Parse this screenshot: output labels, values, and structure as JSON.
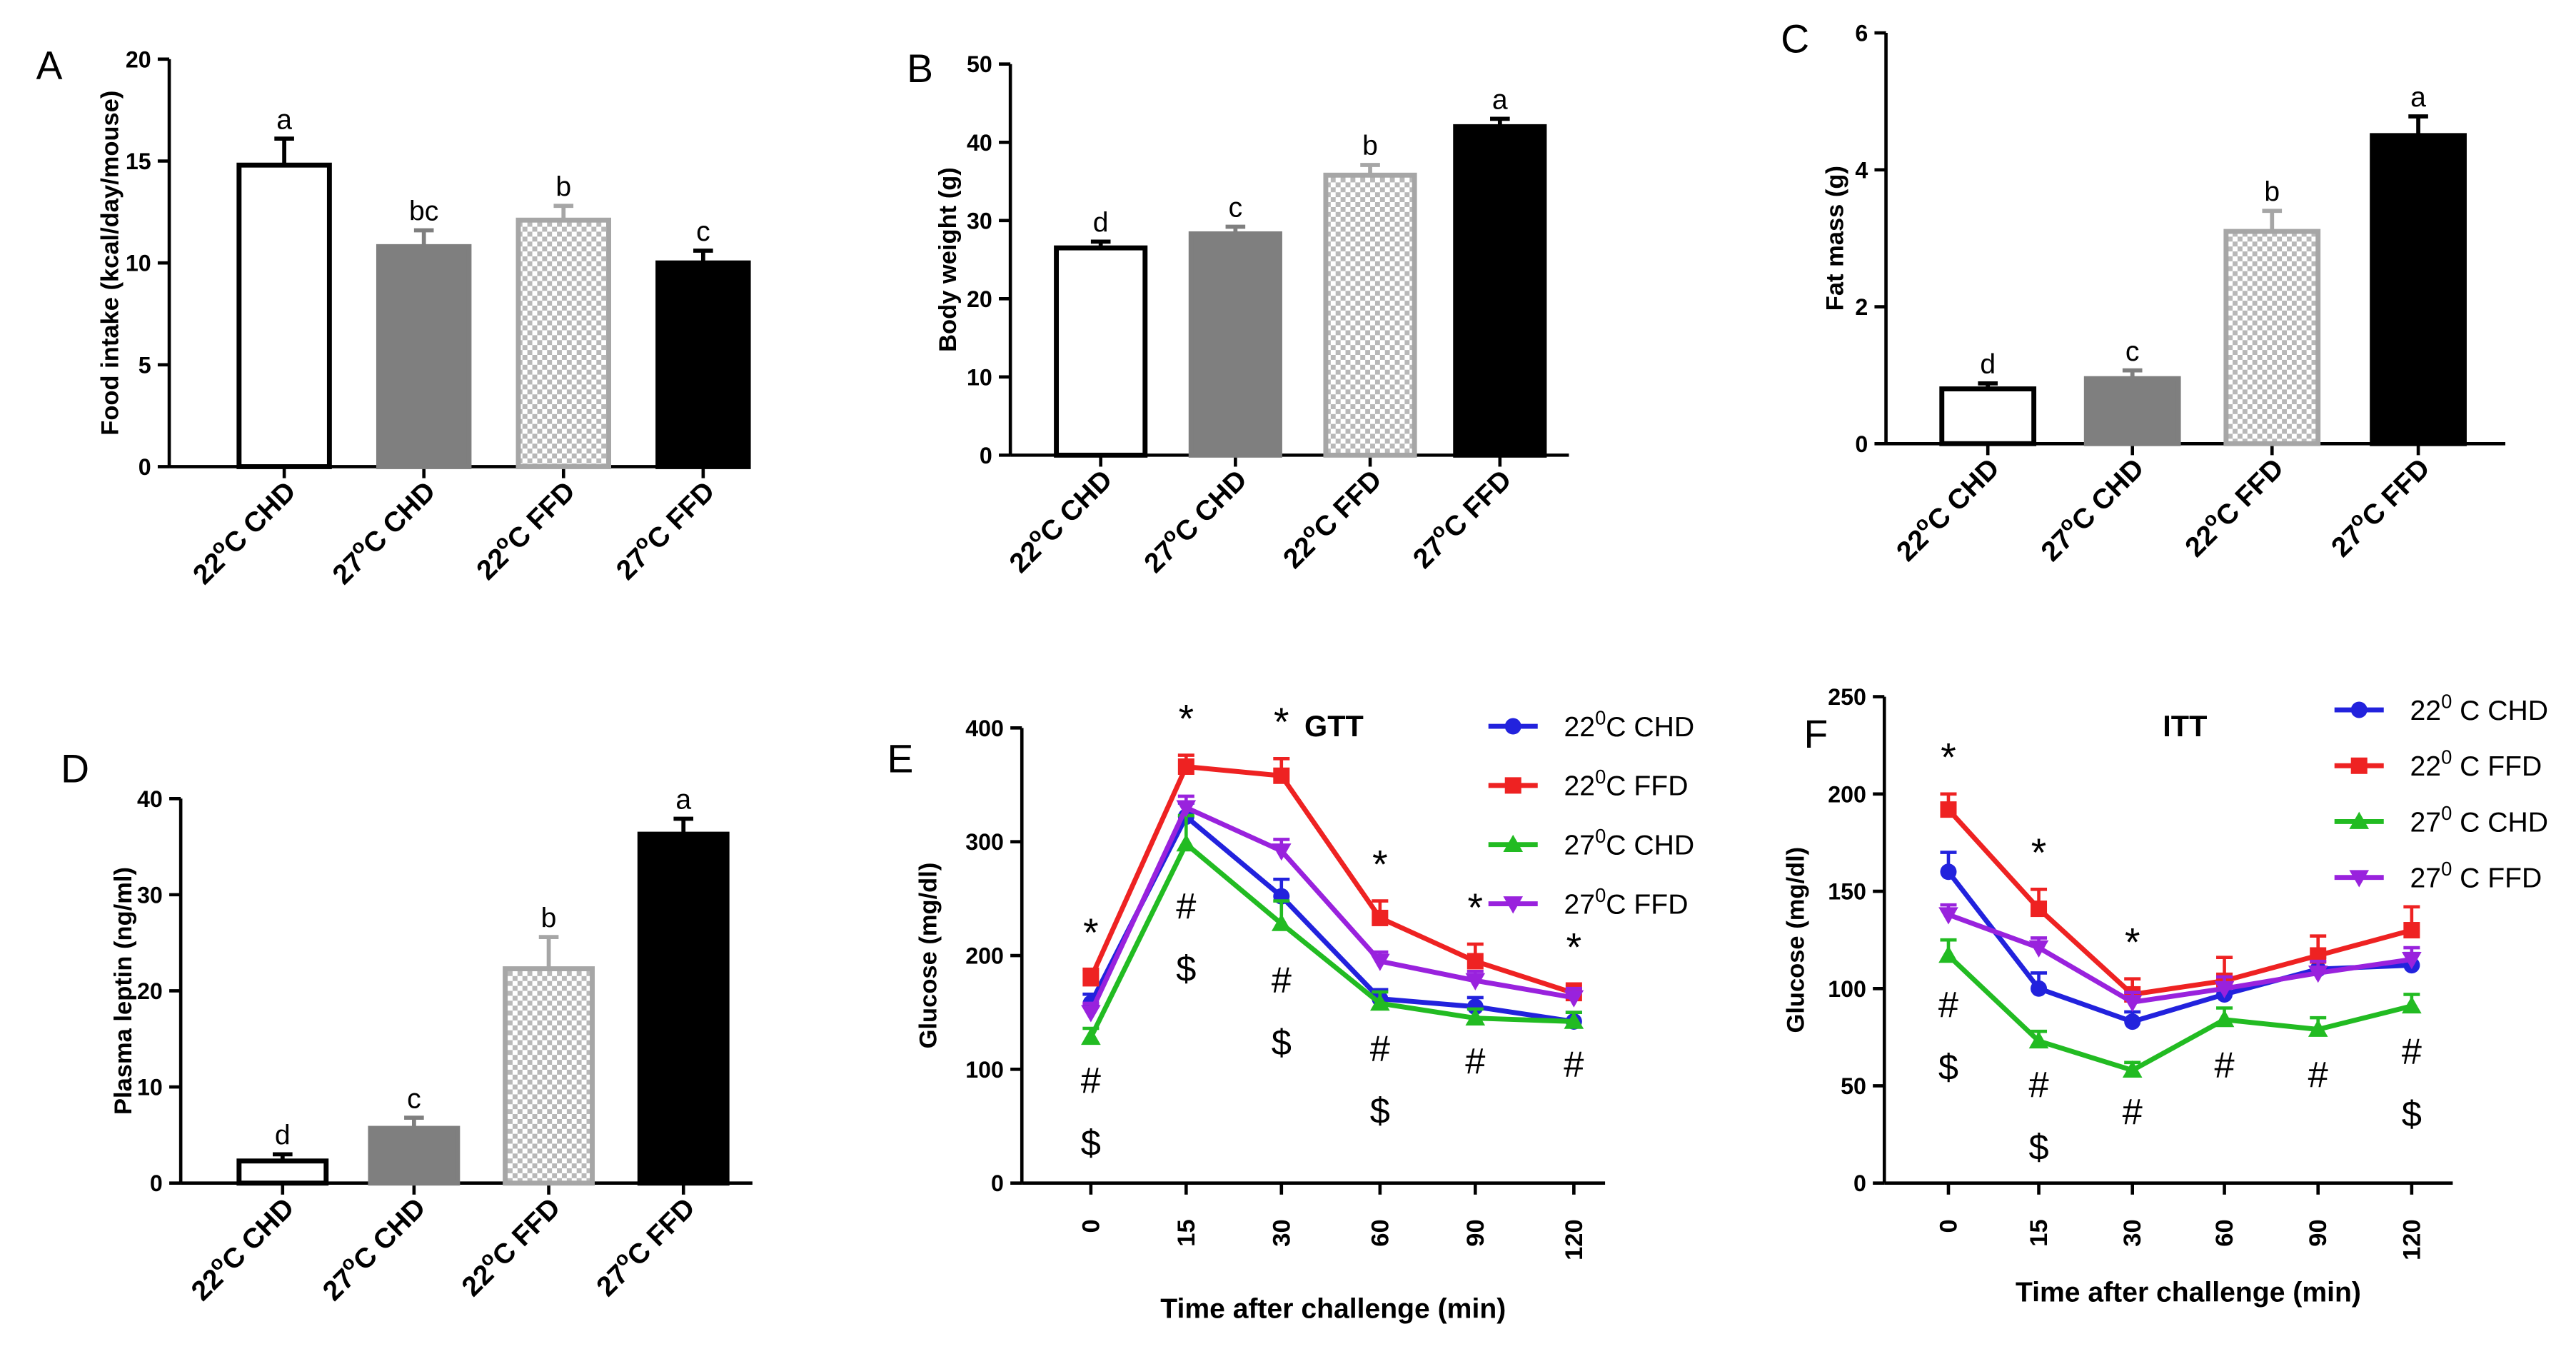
{
  "chart_data": [
    {
      "id": "A",
      "panel_label": "A",
      "type": "bar",
      "ylabel": "Food intake (kcal/day/mouse)",
      "ylim": [
        0,
        20
      ],
      "yticks": [
        "0",
        "5",
        "10",
        "15",
        "20"
      ],
      "categories": [
        {
          "main": "22",
          "sup": "o",
          "rest": "C CHD"
        },
        {
          "main": "27",
          "sup": "o",
          "rest": "C CHD"
        },
        {
          "main": "22",
          "sup": "o",
          "rest": "C FFD"
        },
        {
          "main": "27",
          "sup": "o",
          "rest": "C FFD"
        }
      ],
      "values": [
        14.8,
        10.8,
        12.1,
        10.0
      ],
      "errors": [
        1.3,
        0.8,
        0.7,
        0.6
      ],
      "letters": [
        "a",
        "bc",
        "b",
        "c"
      ]
    },
    {
      "id": "B",
      "panel_label": "B",
      "type": "bar",
      "ylabel": "Body weight (g)",
      "ylim": [
        0,
        50
      ],
      "yticks": [
        "0",
        "10",
        "20",
        "30",
        "40",
        "50"
      ],
      "categories": [
        {
          "main": "22",
          "sup": "o",
          "rest": "C CHD"
        },
        {
          "main": "27",
          "sup": "o",
          "rest": "C CHD"
        },
        {
          "main": "22",
          "sup": "o",
          "rest": "C FFD"
        },
        {
          "main": "27",
          "sup": "o",
          "rest": "C FFD"
        }
      ],
      "values": [
        26.5,
        28.3,
        35.8,
        42.0
      ],
      "errors": [
        0.8,
        0.9,
        1.3,
        1.0
      ],
      "letters": [
        "d",
        "c",
        "b",
        "a"
      ]
    },
    {
      "id": "C",
      "panel_label": "C",
      "type": "bar",
      "ylabel": "Fat mass (g)",
      "ylim": [
        0,
        6
      ],
      "yticks": [
        "0",
        "2",
        "4",
        "6"
      ],
      "categories": [
        {
          "main": "22",
          "sup": "o",
          "rest": "C CHD"
        },
        {
          "main": "27",
          "sup": "o",
          "rest": "C CHD"
        },
        {
          "main": "22",
          "sup": "o",
          "rest": "C FFD"
        },
        {
          "main": "27",
          "sup": "o",
          "rest": "C FFD"
        }
      ],
      "values": [
        0.8,
        0.95,
        3.1,
        4.5
      ],
      "errors": [
        0.08,
        0.12,
        0.3,
        0.28
      ],
      "letters": [
        "d",
        "c",
        "b",
        "a"
      ]
    },
    {
      "id": "D",
      "panel_label": "D",
      "type": "bar",
      "ylabel": "Plasma leptin (ng/ml)",
      "ylim": [
        0,
        40
      ],
      "yticks": [
        "0",
        "10",
        "20",
        "30",
        "40"
      ],
      "categories": [
        {
          "main": "22",
          "sup": "o",
          "rest": "C CHD"
        },
        {
          "main": "27",
          "sup": "o",
          "rest": "C CHD"
        },
        {
          "main": "22",
          "sup": "o",
          "rest": "C FFD"
        },
        {
          "main": "27",
          "sup": "o",
          "rest": "C FFD"
        }
      ],
      "values": [
        2.3,
        5.7,
        22.3,
        36.3
      ],
      "errors": [
        0.7,
        1.1,
        3.3,
        1.6
      ],
      "letters": [
        "d",
        "c",
        "b",
        "a"
      ]
    },
    {
      "id": "E",
      "panel_label": "E",
      "type": "line",
      "title": "GTT",
      "ylabel": "Glucose  (mg/dl)",
      "xlabel": "Time after challenge (min)",
      "ylim": [
        0,
        400
      ],
      "yticks": [
        "0",
        "100",
        "200",
        "300",
        "400"
      ],
      "x": [
        "0",
        "15",
        "30",
        "60",
        "90",
        "120"
      ],
      "series": [
        {
          "name": "22C CHD",
          "legend": {
            "main": "22",
            "sup": "0",
            "rest": "C CHD"
          },
          "color": "#2222dd",
          "marker": "circle",
          "values": [
            158,
            322,
            252,
            162,
            155,
            142
          ],
          "errors": [
            8,
            12,
            15,
            8,
            8,
            8
          ]
        },
        {
          "name": "22C FFD",
          "legend": {
            "main": "22",
            "sup": "0",
            "rest": "C FFD"
          },
          "color": "#ee2222",
          "marker": "square",
          "values": [
            180,
            366,
            358,
            233,
            195,
            167
          ],
          "errors": [
            8,
            10,
            15,
            15,
            15,
            8
          ]
        },
        {
          "name": "27C CHD",
          "legend": {
            "main": "27",
            "sup": "0",
            "rest": "C CHD"
          },
          "color": "#22bb22",
          "marker": "triangle",
          "values": [
            128,
            298,
            228,
            158,
            145,
            142
          ],
          "errors": [
            8,
            25,
            20,
            10,
            8,
            8
          ]
        },
        {
          "name": "27C FFD",
          "legend": {
            "main": "27",
            "sup": "0",
            "rest": "C  FFD"
          },
          "color": "#9922dd",
          "marker": "triangle-down",
          "values": [
            150,
            330,
            292,
            195,
            178,
            163
          ],
          "errors": [
            8,
            10,
            10,
            8,
            8,
            8
          ]
        }
      ],
      "annotations": [
        {
          "x_index": 0,
          "lines": [
            "*",
            "#",
            "$"
          ]
        },
        {
          "x_index": 1,
          "lines": [
            "*",
            "#",
            "$"
          ]
        },
        {
          "x_index": 2,
          "lines": [
            "*",
            "#",
            "$"
          ]
        },
        {
          "x_index": 3,
          "lines": [
            "*",
            "#",
            "$"
          ]
        },
        {
          "x_index": 4,
          "lines": [
            "*",
            "#"
          ]
        },
        {
          "x_index": 5,
          "lines": [
            "*",
            "#"
          ]
        }
      ]
    },
    {
      "id": "F",
      "panel_label": "F",
      "type": "line",
      "title": "ITT",
      "ylabel": "Glucose (mg/dl)",
      "xlabel": "Time after challenge (min)",
      "ylim": [
        0,
        250
      ],
      "yticks": [
        "0",
        "50",
        "100",
        "150",
        "200",
        "250"
      ],
      "x": [
        "0",
        "15",
        "30",
        "60",
        "90",
        "120"
      ],
      "series": [
        {
          "name": "22C CHD",
          "legend": {
            "main": "22",
            "sup": "0",
            "rest": " C CHD"
          },
          "color": "#2222dd",
          "marker": "circle",
          "values": [
            160,
            100,
            83,
            97,
            110,
            112
          ],
          "errors": [
            10,
            8,
            5,
            6,
            6,
            6
          ]
        },
        {
          "name": "22C FFD",
          "legend": {
            "main": "22",
            "sup": "0",
            "rest": " C FFD"
          },
          "color": "#ee2222",
          "marker": "square",
          "values": [
            192,
            141,
            97,
            104,
            117,
            130
          ],
          "errors": [
            8,
            10,
            8,
            12,
            10,
            12
          ]
        },
        {
          "name": "27C CHD",
          "legend": {
            "main": "27",
            "sup": "0",
            "rest": " C CHD"
          },
          "color": "#22bb22",
          "marker": "triangle",
          "values": [
            117,
            73,
            58,
            84,
            79,
            91
          ],
          "errors": [
            8,
            5,
            4,
            6,
            6,
            6
          ]
        },
        {
          "name": "27C FFD",
          "legend": {
            "main": "27",
            "sup": "0",
            "rest": " C FFD"
          },
          "color": "#9922dd",
          "marker": "triangle-down",
          "values": [
            138,
            121,
            93,
            100,
            108,
            115
          ],
          "errors": [
            5,
            5,
            5,
            6,
            6,
            6
          ]
        }
      ],
      "annotations": [
        {
          "x_index": 0,
          "lines": [
            "*",
            "#",
            "$"
          ]
        },
        {
          "x_index": 1,
          "lines": [
            "*",
            "#",
            "$"
          ]
        },
        {
          "x_index": 2,
          "lines": [
            "*",
            "#"
          ]
        },
        {
          "x_index": 3,
          "lines": [
            "#"
          ]
        },
        {
          "x_index": 4,
          "lines": [
            "#"
          ]
        },
        {
          "x_index": 5,
          "lines": [
            "#",
            "$"
          ]
        }
      ]
    }
  ]
}
